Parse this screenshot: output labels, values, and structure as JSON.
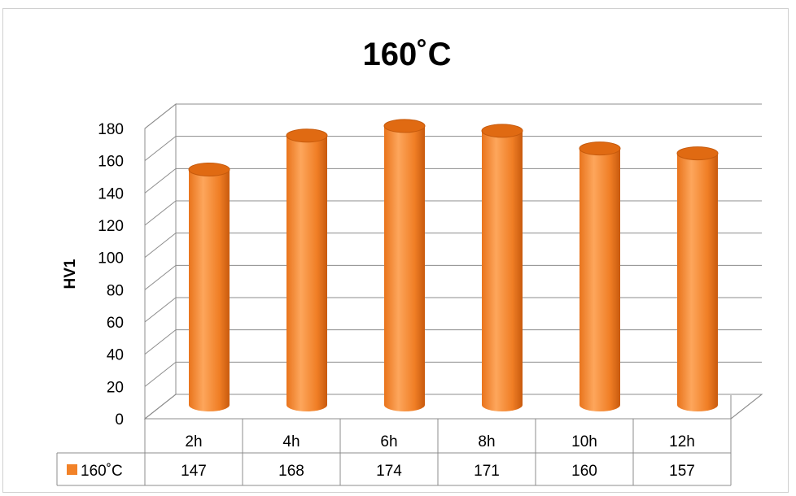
{
  "chart_data": {
    "type": "bar",
    "title": "160˚C",
    "ylabel": "HV1",
    "xlabel": "",
    "categories": [
      "2h",
      "4h",
      "6h",
      "8h",
      "10h",
      "12h"
    ],
    "series": [
      {
        "name": "160˚C",
        "values": [
          147,
          168,
          174,
          171,
          160,
          157
        ],
        "color": "#F28228"
      }
    ],
    "ylim": [
      0,
      180
    ],
    "yticks": [
      0,
      20,
      40,
      60,
      80,
      100,
      120,
      140,
      160,
      180
    ],
    "grid": true,
    "legend": "data-table",
    "data_table": true
  }
}
